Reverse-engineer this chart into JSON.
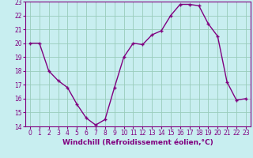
{
  "x": [
    0,
    1,
    2,
    3,
    4,
    5,
    6,
    7,
    8,
    9,
    10,
    11,
    12,
    13,
    14,
    15,
    16,
    17,
    18,
    19,
    20,
    21,
    22,
    23
  ],
  "y": [
    20,
    20,
    18,
    17.3,
    16.8,
    15.6,
    14.6,
    14.1,
    14.5,
    16.8,
    19.0,
    20.0,
    19.9,
    20.6,
    20.9,
    22.0,
    22.8,
    22.8,
    22.7,
    21.4,
    20.5,
    17.2,
    15.9,
    16.0
  ],
  "line_color": "#800080",
  "marker": "+",
  "marker_color": "#800080",
  "bg_color": "#c8eef0",
  "grid_color": "#99ccbb",
  "xlabel": "Windchill (Refroidissement éolien,°C)",
  "xlabel_color": "#800080",
  "ylim": [
    14,
    23
  ],
  "yticks": [
    14,
    15,
    16,
    17,
    18,
    19,
    20,
    21,
    22,
    23
  ],
  "xticks": [
    0,
    1,
    2,
    3,
    4,
    5,
    6,
    7,
    8,
    9,
    10,
    11,
    12,
    13,
    14,
    15,
    16,
    17,
    18,
    19,
    20,
    21,
    22,
    23
  ],
  "tick_color": "#800080",
  "tick_fontsize": 5.5,
  "xlabel_fontsize": 6.5,
  "linewidth": 1.0,
  "markersize": 3.5
}
